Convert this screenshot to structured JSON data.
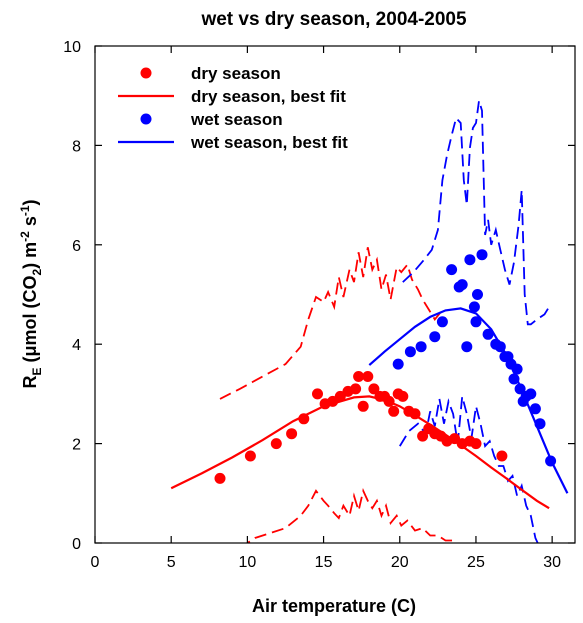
{
  "chart_data": {
    "type": "scatter",
    "title": "wet vs dry season, 2004-2005",
    "xlabel": "Air temperature (C)",
    "ylabel_main": "R",
    "ylabel_sub": "E",
    "ylabel_rest": " (μmol (CO",
    "ylabel_sub2": "2",
    "ylabel_rest2": ") m",
    "ylabel_sup1": "-2",
    "ylabel_s": " s",
    "ylabel_sup2": "-1",
    "ylabel_close": ")",
    "xlim": [
      0,
      31.5
    ],
    "ylim": [
      0,
      10
    ],
    "xticks": [
      "0",
      "5",
      "10",
      "15",
      "20",
      "25",
      "30"
    ],
    "yticks": [
      "0",
      "2",
      "4",
      "6",
      "8",
      "10"
    ],
    "legend_position": "top-left",
    "colors": {
      "dry": "#ff0000",
      "wet": "#0000ff",
      "axis": "#000000"
    },
    "series": [
      {
        "name": "dry season",
        "kind": "points",
        "color": "#ff0000",
        "x": [
          8.2,
          10.2,
          11.9,
          12.9,
          13.7,
          14.6,
          15.1,
          15.6,
          16.1,
          16.6,
          17.1,
          17.3,
          17.6,
          17.9,
          18.3,
          18.7,
          19.0,
          19.3,
          19.6,
          19.9,
          20.2,
          20.6,
          21.0,
          21.5,
          21.9,
          22.3,
          22.7,
          23.1,
          23.6,
          24.1,
          24.6,
          25.0,
          26.7
        ],
        "y": [
          1.3,
          1.75,
          2.0,
          2.2,
          2.5,
          3.0,
          2.8,
          2.85,
          2.95,
          3.05,
          3.1,
          3.35,
          2.75,
          3.35,
          3.1,
          2.95,
          2.95,
          2.85,
          2.65,
          3.0,
          2.95,
          2.65,
          2.6,
          2.15,
          2.3,
          2.2,
          2.15,
          2.05,
          2.1,
          2.0,
          2.05,
          2.0,
          1.75
        ]
      },
      {
        "name": "dry season, best fit",
        "kind": "line",
        "color": "#ff0000",
        "x": [
          5.0,
          7.0,
          9.0,
          11.0,
          13.0,
          15.0,
          17.0,
          18.0,
          19.0,
          20.0,
          21.0,
          22.0,
          23.0,
          24.0,
          25.0,
          26.0,
          27.0,
          28.0,
          29.0,
          29.8
        ],
        "y": [
          1.1,
          1.4,
          1.72,
          2.07,
          2.45,
          2.75,
          2.93,
          2.95,
          2.88,
          2.75,
          2.57,
          2.38,
          2.18,
          1.97,
          1.75,
          1.52,
          1.3,
          1.07,
          0.85,
          0.7
        ]
      },
      {
        "name": "wet season",
        "kind": "points",
        "color": "#0000ff",
        "x": [
          19.9,
          20.7,
          21.4,
          22.3,
          22.8,
          23.4,
          23.9,
          24.1,
          24.4,
          24.6,
          24.9,
          25.0,
          25.1,
          25.4,
          25.8,
          26.3,
          26.6,
          26.9,
          27.1,
          27.3,
          27.5,
          27.7,
          27.9,
          28.1,
          28.3,
          28.6,
          28.9,
          29.2,
          29.9
        ],
        "y": [
          3.6,
          3.85,
          3.95,
          4.15,
          4.45,
          5.5,
          5.15,
          5.2,
          3.95,
          5.7,
          4.75,
          4.45,
          5.0,
          5.8,
          4.2,
          4.0,
          3.95,
          3.75,
          3.75,
          3.6,
          3.3,
          3.5,
          3.1,
          2.85,
          2.95,
          3.0,
          2.7,
          2.4,
          1.65
        ]
      },
      {
        "name": "wet season, best fit",
        "kind": "line",
        "color": "#0000ff",
        "x": [
          18.0,
          19.0,
          20.0,
          21.0,
          22.0,
          23.0,
          24.0,
          25.0,
          26.0,
          27.0,
          28.0,
          29.0,
          30.0,
          31.0
        ],
        "y": [
          3.58,
          3.85,
          4.1,
          4.35,
          4.55,
          4.68,
          4.72,
          4.62,
          4.3,
          3.78,
          3.08,
          2.35,
          1.62,
          1.0
        ]
      }
    ],
    "bands": [
      {
        "color": "#ff0000",
        "x": [
          8.2,
          9.5,
          11.0,
          12.5,
          13.5,
          14.0,
          14.5,
          15.0,
          15.3,
          15.7,
          16.0,
          16.3,
          16.7,
          17.0,
          17.3,
          17.6,
          17.9,
          18.2,
          18.5,
          18.8,
          19.1,
          19.4,
          19.8,
          20.1,
          20.5,
          20.8,
          21.2,
          21.5,
          21.9,
          22.3,
          22.7,
          23.0
        ],
        "y": [
          2.9,
          3.1,
          3.35,
          3.6,
          3.95,
          4.5,
          4.95,
          4.85,
          5.05,
          4.75,
          5.35,
          4.95,
          5.5,
          5.25,
          5.85,
          5.35,
          5.95,
          5.5,
          5.7,
          5.1,
          5.4,
          4.9,
          5.55,
          5.45,
          5.6,
          5.3,
          5.1,
          4.9,
          4.7,
          4.5,
          4.65,
          4.45
        ]
      },
      {
        "color": "#ff0000",
        "x": [
          9.5,
          10.5,
          11.5,
          12.5,
          13.5,
          14.0,
          14.5,
          15.0,
          15.3,
          15.7,
          16.0,
          16.3,
          16.7,
          17.0,
          17.3,
          17.6,
          17.9,
          18.2,
          18.5,
          18.8,
          19.1,
          19.4,
          19.8,
          20.1,
          20.5,
          21.0,
          21.5,
          22.0,
          22.5,
          23.0,
          23.5,
          24.0
        ],
        "y": [
          -0.1,
          0.1,
          0.2,
          0.3,
          0.55,
          0.75,
          1.05,
          0.85,
          0.75,
          0.6,
          0.5,
          0.75,
          0.55,
          0.95,
          0.65,
          1.05,
          0.85,
          0.7,
          0.85,
          0.55,
          0.75,
          0.4,
          0.55,
          0.35,
          0.45,
          0.25,
          0.3,
          0.15,
          0.15,
          0.05,
          0.05,
          -0.05
        ]
      },
      {
        "color": "#0000ff",
        "x": [
          20.2,
          20.9,
          21.6,
          22.1,
          22.5,
          22.8,
          23.1,
          23.4,
          23.7,
          24.0,
          24.2,
          24.4,
          24.6,
          24.8,
          25.0,
          25.2,
          25.4,
          25.6,
          25.8,
          26.0,
          26.3,
          26.6,
          26.9,
          27.2,
          27.5,
          27.8,
          28.0,
          28.2,
          28.4,
          28.6,
          29.0,
          29.5,
          29.9
        ],
        "y": [
          5.25,
          5.45,
          5.7,
          5.9,
          6.3,
          7.3,
          7.8,
          8.2,
          8.55,
          8.45,
          7.3,
          6.8,
          7.95,
          8.35,
          8.45,
          8.9,
          8.7,
          6.2,
          6.5,
          6.0,
          6.3,
          5.9,
          5.5,
          5.2,
          5.65,
          6.4,
          7.1,
          5.0,
          4.4,
          4.4,
          4.5,
          4.6,
          4.8
        ]
      },
      {
        "color": "#0000ff",
        "x": [
          20.0,
          20.6,
          21.2,
          21.7,
          22.0,
          22.3,
          22.6,
          22.9,
          23.2,
          23.5,
          23.8,
          24.1,
          24.4,
          24.7,
          25.0,
          25.3,
          25.6,
          25.9,
          26.2,
          26.5,
          26.8,
          27.1,
          27.4,
          27.7,
          28.0,
          28.3,
          28.6,
          28.9,
          29.2
        ],
        "y": [
          1.95,
          2.25,
          2.4,
          2.2,
          2.65,
          2.35,
          2.9,
          2.4,
          2.85,
          2.6,
          2.0,
          2.95,
          2.6,
          2.1,
          2.75,
          2.4,
          1.95,
          2.05,
          1.75,
          1.55,
          1.55,
          1.25,
          1.35,
          0.95,
          1.15,
          0.75,
          0.55,
          0.1,
          -0.1
        ]
      }
    ]
  }
}
